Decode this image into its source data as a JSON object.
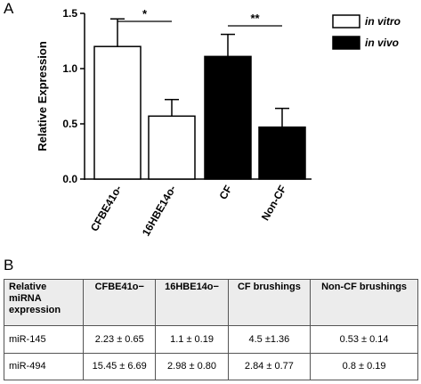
{
  "panel_a_label": "A",
  "panel_b_label": "B",
  "chart_data": {
    "type": "bar",
    "ylabel": "Relative Expression",
    "ylim": [
      0,
      1.5
    ],
    "yticks": [
      "0.0",
      "0.5",
      "1.0",
      "1.5"
    ],
    "categories": [
      "CFBE41o-",
      "16HBE14o-",
      "CF",
      "Non-CF"
    ],
    "values": [
      1.2,
      0.57,
      1.11,
      0.47
    ],
    "errors": [
      0.25,
      0.15,
      0.2,
      0.17
    ],
    "groups": [
      "in vitro",
      "in vitro",
      "in vivo",
      "in vivo"
    ],
    "legend": [
      {
        "label": "in vitro",
        "fill": "#ffffff"
      },
      {
        "label": "in vivo",
        "fill": "#000000"
      }
    ],
    "legend_position": "top-right",
    "significance": [
      {
        "from": 0,
        "to": 1,
        "label": "*"
      },
      {
        "from": 2,
        "to": 3,
        "label": "**"
      }
    ],
    "colors": {
      "in_vitro_fill": "#ffffff",
      "in_vivo_fill": "#000000",
      "stroke": "#000000"
    }
  },
  "table": {
    "headers": [
      "Relative miRNA expression",
      "CFBE41o−",
      "16HBE14o−",
      "CF brushings",
      "Non-CF brushings"
    ],
    "rows": [
      [
        "miR-145",
        "2.23 ± 0.65",
        "1.1 ± 0.19",
        "4.5 ±1.36",
        "0.53 ± 0.14"
      ],
      [
        "miR-494",
        "15.45 ± 6.69",
        "2.98 ± 0.80",
        "2.84 ± 0.77",
        "0.8 ± 0.19"
      ]
    ]
  }
}
